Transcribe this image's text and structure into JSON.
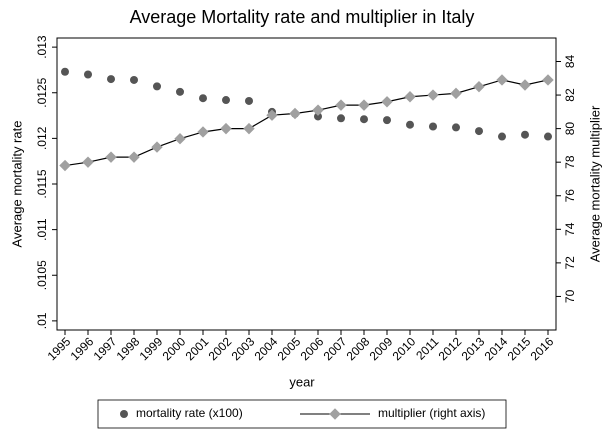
{
  "chart_data": {
    "type": "line",
    "title": "Average Mortality rate and multiplier in Italy",
    "x_label": "year",
    "y_label": "Average mortality rate",
    "y2_label": "Average mortality multiplier",
    "categories": [
      "1995",
      "1996",
      "1997",
      "1998",
      "1999",
      "2000",
      "2001",
      "2002",
      "2003",
      "2004",
      "2005",
      "2006",
      "2007",
      "2008",
      "2009",
      "2010",
      "2011",
      "2012",
      "2013",
      "2014",
      "2015",
      "2016"
    ],
    "series": [
      {
        "name": "mortality rate (x100)",
        "color": "#555555",
        "mode": "markers",
        "marker": "circle",
        "axis": "y",
        "values": [
          0.01273,
          0.0127,
          0.01265,
          0.01264,
          0.01257,
          0.01251,
          0.01244,
          0.01242,
          0.01241,
          0.01229,
          0.01227,
          0.01224,
          0.01222,
          0.01221,
          0.0122,
          0.01215,
          0.01213,
          0.01212,
          0.01208,
          0.01202,
          0.01204,
          0.01202
        ]
      },
      {
        "name": "multiplier (right axis)",
        "color": "#000000",
        "marker_color": "#a0a0a0",
        "mode": "lines+markers",
        "marker": "diamond",
        "axis": "y2",
        "values": [
          77.8,
          78.0,
          78.3,
          78.3,
          78.9,
          79.4,
          79.8,
          80.0,
          80.0,
          80.8,
          80.9,
          81.1,
          81.4,
          81.4,
          81.6,
          81.9,
          82.0,
          82.1,
          82.5,
          82.9,
          82.6,
          82.9
        ]
      }
    ],
    "ylim": [
      0.0099,
      0.0131
    ],
    "yticks": [
      {
        "value": 0.01,
        "label": ".01"
      },
      {
        "value": 0.0105,
        "label": ".0105"
      },
      {
        "value": 0.011,
        "label": ".011"
      },
      {
        "value": 0.0115,
        "label": ".0115"
      },
      {
        "value": 0.012,
        "label": ".012"
      },
      {
        "value": 0.0125,
        "label": ".0125"
      },
      {
        "value": 0.013,
        "label": ".013"
      }
    ],
    "y2lim": [
      68,
      85.4
    ],
    "y2ticks": [
      70,
      72,
      74,
      76,
      78,
      80,
      82,
      84
    ],
    "grid": false,
    "legend": "bottom"
  }
}
